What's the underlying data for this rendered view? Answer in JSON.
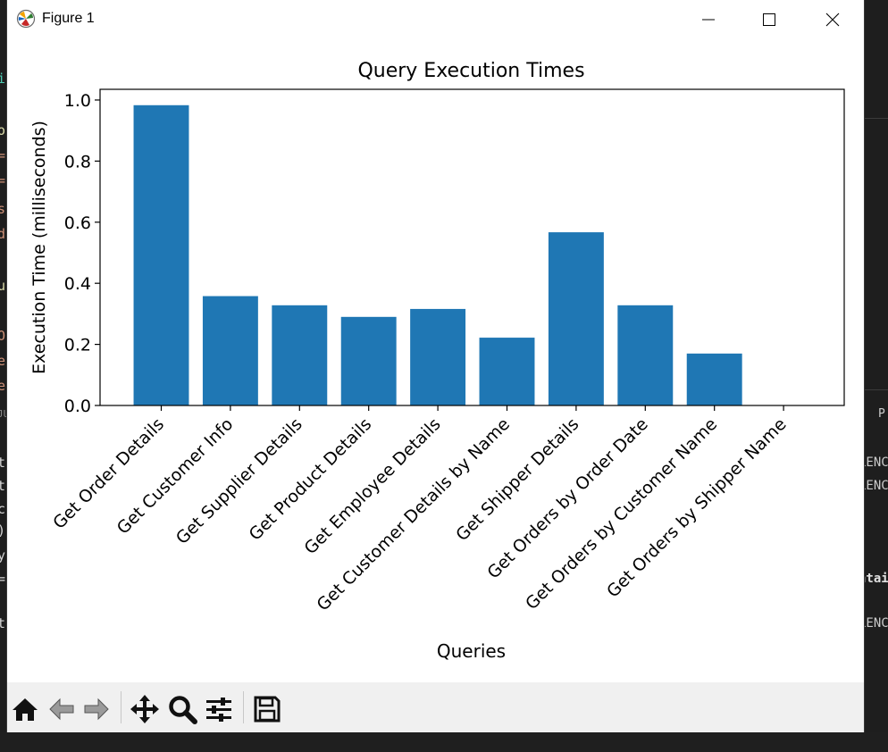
{
  "window": {
    "title": "Figure 1",
    "minimize_icon": "minimize-icon",
    "maximize_icon": "maximize-icon",
    "close_icon": "close-icon"
  },
  "background": {
    "left_fragments": [
      "i",
      "o",
      "=",
      "=",
      "s",
      "d",
      "u",
      "O",
      "e",
      "e",
      "JU",
      "t",
      "t",
      "c",
      ")",
      "y",
      "=",
      "t"
    ],
    "right_fragments": [
      "P",
      "LENC",
      "LENC",
      "ntai",
      "LENC"
    ],
    "accent_colors": [
      "#4ec9b0",
      "#ce9178",
      "#dcdcaa",
      "#d4d4d4",
      "#f44747"
    ]
  },
  "chart_data": {
    "type": "bar",
    "title": "Query Execution Times",
    "xlabel": "Queries",
    "ylabel": "Execution Time (milliseconds)",
    "categories": [
      "Get Order Details",
      "Get Customer Info",
      "Get Supplier Details",
      "Get Product Details",
      "Get Employee Details",
      "Get Customer Details by Name",
      "Get Shipper Details",
      "Get Orders by Order Date",
      "Get Orders by Customer Name",
      "Get Orders by Shipper Name"
    ],
    "values": [
      0.983,
      0.358,
      0.328,
      0.29,
      0.316,
      0.222,
      0.567,
      0.328,
      0.17,
      0.0
    ],
    "ylim": [
      0.0,
      1.035
    ],
    "yticks": [
      "0.0",
      "0.2",
      "0.4",
      "0.6",
      "0.8",
      "1.0"
    ],
    "ytick_values": [
      0.0,
      0.2,
      0.4,
      0.6,
      0.8,
      1.0
    ],
    "bar_color": "#1f77b4",
    "grid": false
  },
  "toolbar": {
    "items": [
      {
        "name": "home-icon",
        "label": "Home"
      },
      {
        "name": "back-icon",
        "label": "Back"
      },
      {
        "name": "forward-icon",
        "label": "Forward"
      },
      {
        "name": "pan-icon",
        "label": "Pan"
      },
      {
        "name": "zoom-icon",
        "label": "Zoom"
      },
      {
        "name": "configure-subplots-icon",
        "label": "Configure subplots"
      },
      {
        "name": "save-icon",
        "label": "Save"
      }
    ]
  }
}
